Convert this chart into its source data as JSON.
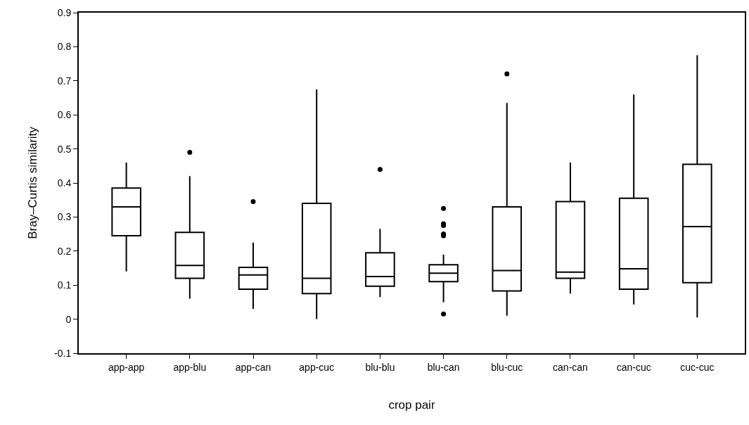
{
  "chart_data": {
    "type": "box",
    "xlabel": "crop pair",
    "ylabel": "Bray–Curtis similarity",
    "categories": [
      "app-app",
      "app-blu",
      "app-can",
      "app-cuc",
      "blu-blu",
      "blu-can",
      "blu-cuc",
      "can-can",
      "can-cuc",
      "cuc-cuc"
    ],
    "boxes": [
      {
        "low": 0.14,
        "q1": 0.245,
        "median": 0.33,
        "q3": 0.385,
        "high": 0.46
      },
      {
        "low": 0.06,
        "q1": 0.12,
        "median": 0.158,
        "q3": 0.255,
        "high": 0.42,
        "outliers": [
          0.49
        ]
      },
      {
        "low": 0.03,
        "q1": 0.088,
        "median": 0.13,
        "q3": 0.152,
        "high": 0.225,
        "outliers": [
          0.345
        ]
      },
      {
        "low": 0.0,
        "q1": 0.075,
        "median": 0.12,
        "q3": 0.34,
        "high": 0.675
      },
      {
        "low": 0.065,
        "q1": 0.097,
        "median": 0.125,
        "q3": 0.195,
        "high": 0.265,
        "outliers": [
          0.44
        ]
      },
      {
        "low": 0.05,
        "q1": 0.11,
        "median": 0.135,
        "q3": 0.16,
        "high": 0.19,
        "outliers": [
          0.325,
          0.28,
          0.275,
          0.25,
          0.245,
          0.015
        ]
      },
      {
        "low": 0.01,
        "q1": 0.083,
        "median": 0.143,
        "q3": 0.33,
        "high": 0.635,
        "outliers": [
          0.72
        ]
      },
      {
        "low": 0.075,
        "q1": 0.12,
        "median": 0.138,
        "q3": 0.345,
        "high": 0.46
      },
      {
        "low": 0.043,
        "q1": 0.088,
        "median": 0.148,
        "q3": 0.355,
        "high": 0.66
      },
      {
        "low": 0.005,
        "q1": 0.107,
        "median": 0.272,
        "q3": 0.455,
        "high": 0.775
      }
    ],
    "color": "#000000",
    "ylim": [
      -0.1,
      0.9
    ],
    "yticks": [
      -0.1,
      0,
      0.1,
      0.2,
      0.3,
      0.4,
      0.5,
      0.6,
      0.7,
      0.8,
      0.9
    ],
    "grid": false,
    "marker": "circle"
  }
}
